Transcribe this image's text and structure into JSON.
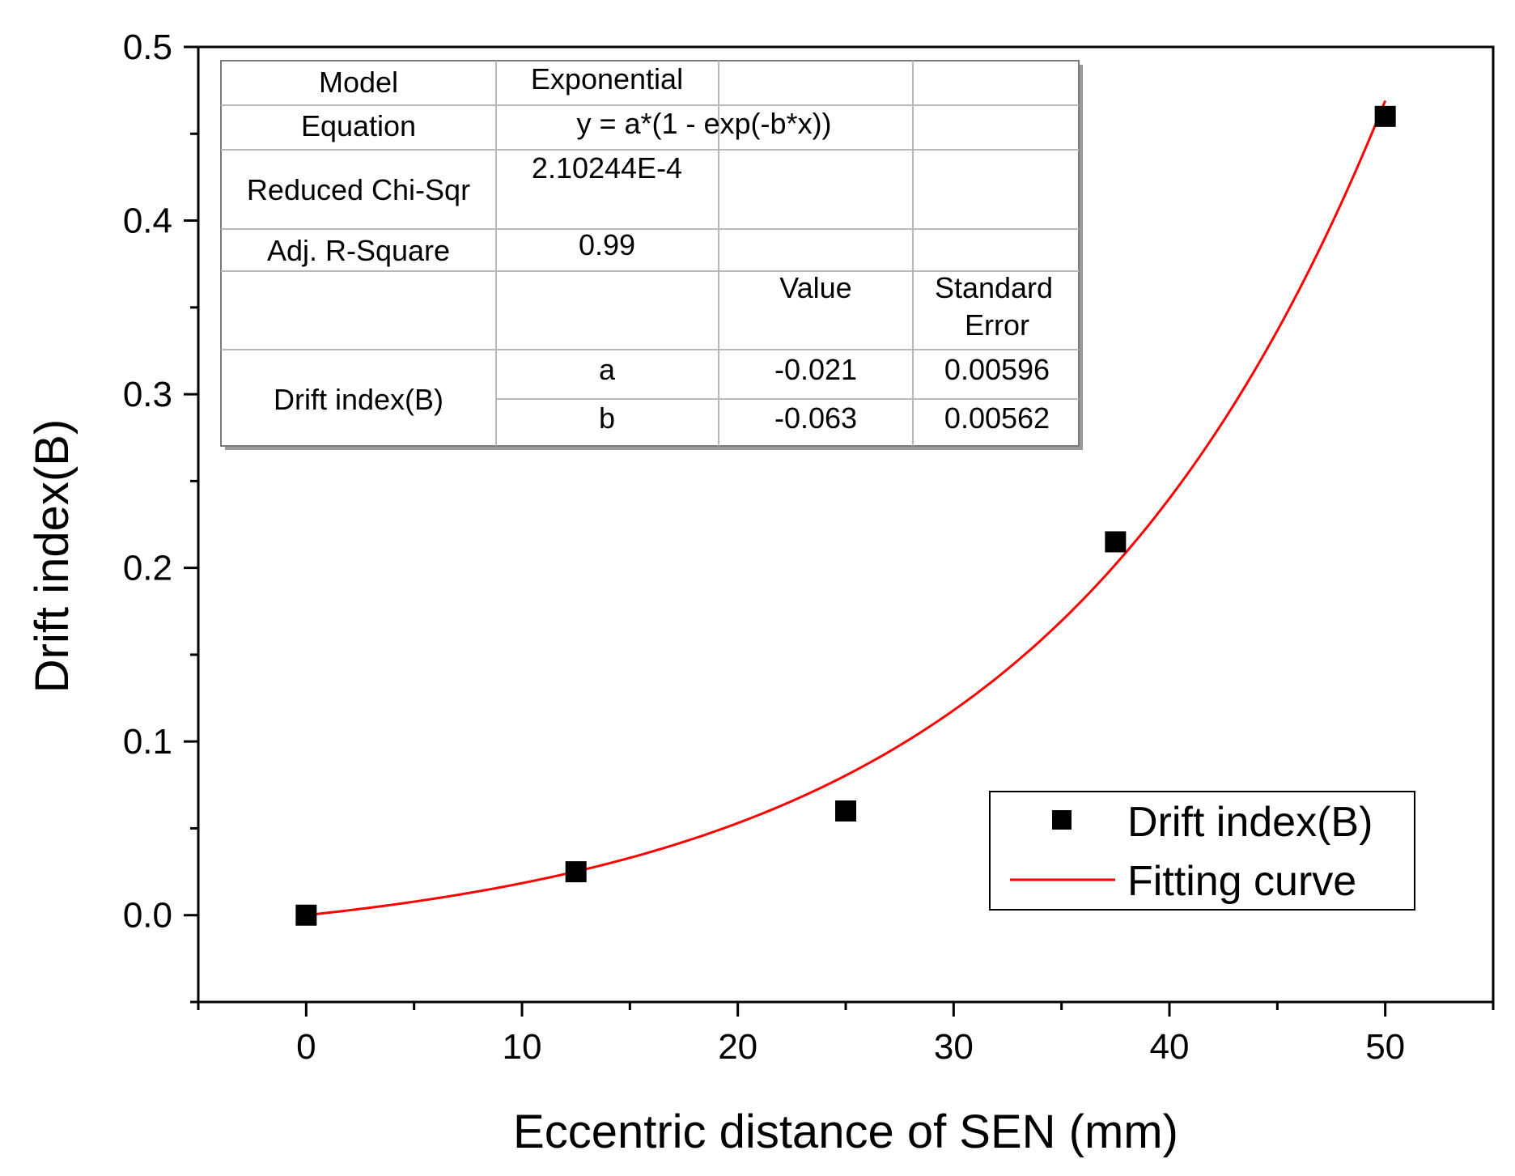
{
  "chart_data": {
    "type": "scatter",
    "title": "",
    "xlabel": "Eccentric distance of SEN (mm)",
    "ylabel": "Drift index(B)",
    "xlim": [
      -5,
      55
    ],
    "ylim": [
      -0.05,
      0.5
    ],
    "xticks": [
      0,
      10,
      20,
      30,
      40,
      50
    ],
    "xtick_labels": [
      "0",
      "10",
      "20",
      "30",
      "40",
      "50"
    ],
    "yticks": [
      0.0,
      0.1,
      0.2,
      0.3,
      0.4,
      0.5
    ],
    "ytick_labels": [
      "0.0",
      "0.1",
      "0.2",
      "0.3",
      "0.4",
      "0.5"
    ],
    "x_minor_step": 5,
    "y_minor_step": 0.05,
    "grid": false,
    "legend_position": "bottom-right",
    "series": [
      {
        "name": "Drift index(B)",
        "kind": "scatter",
        "marker": "square",
        "color": "#000000",
        "x": [
          0,
          12.5,
          25,
          37.5,
          50
        ],
        "y": [
          0.0,
          0.025,
          0.06,
          0.215,
          0.46
        ]
      },
      {
        "name": "Fitting curve",
        "kind": "line",
        "color": "#ff0000",
        "model": "a*(1 - exp(-b*x))",
        "params": {
          "a": -0.021,
          "b": -0.063
        },
        "x_range": [
          0,
          50
        ]
      }
    ],
    "fit_table": {
      "rows": {
        "model": {
          "label": "Model",
          "value": "Exponential"
        },
        "equation": {
          "label": "Equation",
          "value": "y = a*(1 - exp(-b*x))"
        },
        "chi": {
          "label": "Reduced Chi-Sqr",
          "value": "2.10244E-4"
        },
        "r2": {
          "label": "Adj. R-Square",
          "value": "0.99"
        }
      },
      "headers": {
        "value": "Value",
        "std_error_line1": "Standard",
        "std_error_line2": "Error"
      },
      "param_group": "Drift index(B)",
      "params": [
        {
          "name": "a",
          "value": "-0.021",
          "std_error": "0.00596"
        },
        {
          "name": "b",
          "value": "-0.063",
          "std_error": "0.00562"
        }
      ]
    }
  }
}
